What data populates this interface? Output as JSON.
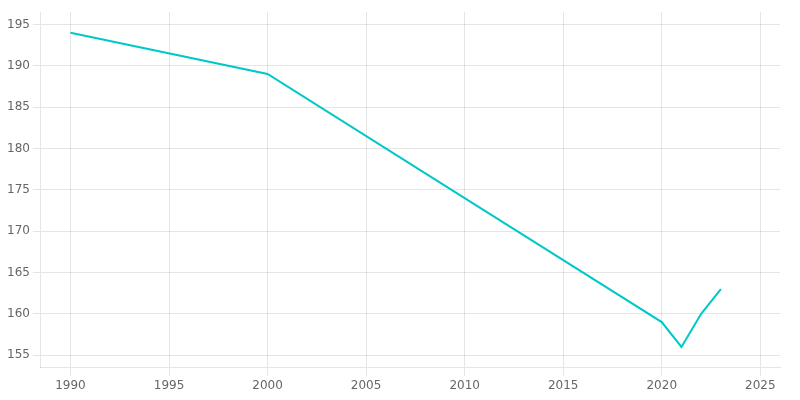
{
  "chart_data": {
    "type": "line",
    "x": [
      1990,
      2000,
      2010,
      2020,
      2021,
      2022,
      2023
    ],
    "values": [
      194,
      189,
      174,
      159,
      156,
      160,
      163
    ],
    "color": "#00C8C8",
    "xlim": [
      1988.5,
      2026
    ],
    "ylim": [
      153.5,
      196.5
    ],
    "xticks": [
      1990,
      1995,
      2000,
      2005,
      2010,
      2015,
      2020,
      2025
    ],
    "yticks": [
      155,
      160,
      165,
      170,
      175,
      180,
      185,
      190,
      195
    ],
    "grid": true
  }
}
